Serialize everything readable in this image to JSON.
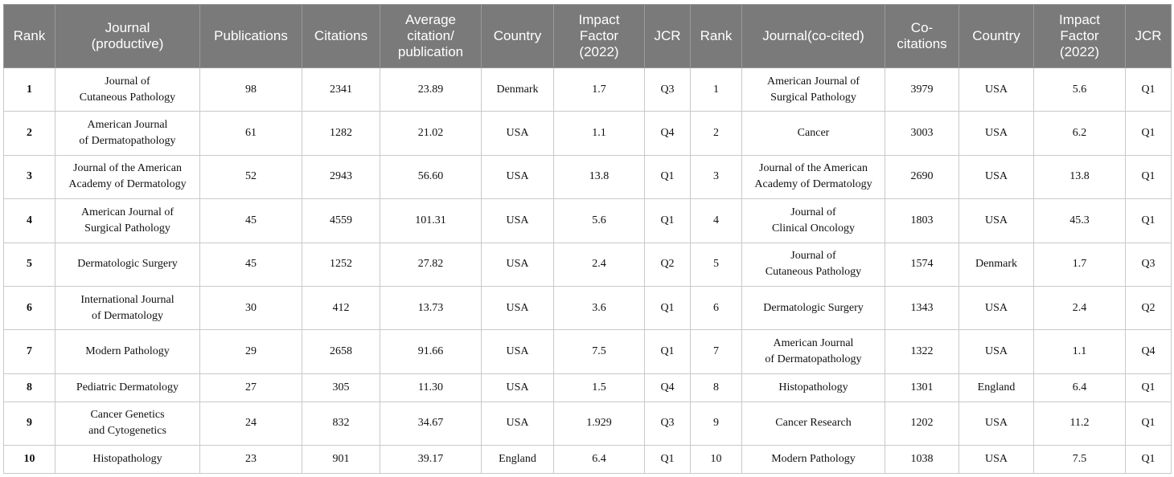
{
  "headers": [
    "Rank",
    "Journal\n(productive)",
    "Publications",
    "Citations",
    "Average\ncitation/\npublication",
    "Country",
    "Impact\nFactor\n(2022)",
    "JCR",
    "Rank",
    "Journal(co-cited)",
    "Co-\ncitations",
    "Country",
    "Impact\nFactor\n(2022)",
    "JCR"
  ],
  "rows": [
    [
      "1",
      "Journal of\nCutaneous Pathology",
      "98",
      "2341",
      "23.89",
      "Denmark",
      "1.7",
      "Q3",
      "1",
      "American Journal of\nSurgical Pathology",
      "3979",
      "USA",
      "5.6",
      "Q1"
    ],
    [
      "2",
      "American Journal\nof Dermatopathology",
      "61",
      "1282",
      "21.02",
      "USA",
      "1.1",
      "Q4",
      "2",
      "Cancer",
      "3003",
      "USA",
      "6.2",
      "Q1"
    ],
    [
      "3",
      "Journal of the American\nAcademy of Dermatology",
      "52",
      "2943",
      "56.60",
      "USA",
      "13.8",
      "Q1",
      "3",
      "Journal of the American\nAcademy of Dermatology",
      "2690",
      "USA",
      "13.8",
      "Q1"
    ],
    [
      "4",
      "American Journal of\nSurgical Pathology",
      "45",
      "4559",
      "101.31",
      "USA",
      "5.6",
      "Q1",
      "4",
      "Journal of\nClinical Oncology",
      "1803",
      "USA",
      "45.3",
      "Q1"
    ],
    [
      "5",
      "Dermatologic Surgery",
      "45",
      "1252",
      "27.82",
      "USA",
      "2.4",
      "Q2",
      "5",
      "Journal of\nCutaneous Pathology",
      "1574",
      "Denmark",
      "1.7",
      "Q3"
    ],
    [
      "6",
      "International Journal\nof Dermatology",
      "30",
      "412",
      "13.73",
      "USA",
      "3.6",
      "Q1",
      "6",
      "Dermatologic Surgery",
      "1343",
      "USA",
      "2.4",
      "Q2"
    ],
    [
      "7",
      "Modern Pathology",
      "29",
      "2658",
      "91.66",
      "USA",
      "7.5",
      "Q1",
      "7",
      "American Journal\nof Dermatopathology",
      "1322",
      "USA",
      "1.1",
      "Q4"
    ],
    [
      "8",
      "Pediatric Dermatology",
      "27",
      "305",
      "11.30",
      "USA",
      "1.5",
      "Q4",
      "8",
      "Histopathology",
      "1301",
      "England",
      "6.4",
      "Q1"
    ],
    [
      "9",
      "Cancer Genetics\nand Cytogenetics",
      "24",
      "832",
      "34.67",
      "USA",
      "1.929",
      "Q3",
      "9",
      "Cancer Research",
      "1202",
      "USA",
      "11.2",
      "Q1"
    ],
    [
      "10",
      "Histopathology",
      "23",
      "901",
      "39.17",
      "England",
      "6.4",
      "Q1",
      "10",
      "Modern Pathology",
      "1038",
      "USA",
      "7.5",
      "Q1"
    ]
  ]
}
